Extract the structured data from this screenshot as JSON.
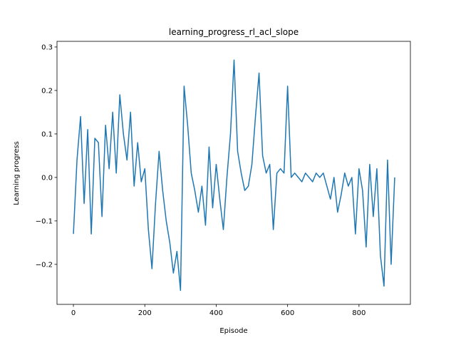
{
  "chart_data": {
    "type": "line",
    "title": "learning_progress_rl_acl_slope",
    "x_label": "Episode",
    "y_label": "Learning progress",
    "x": [
      0,
      10,
      20,
      30,
      40,
      50,
      60,
      70,
      80,
      90,
      100,
      110,
      120,
      130,
      140,
      150,
      160,
      170,
      180,
      190,
      200,
      210,
      220,
      230,
      240,
      250,
      260,
      270,
      280,
      290,
      300,
      310,
      320,
      330,
      340,
      350,
      360,
      370,
      380,
      390,
      400,
      410,
      420,
      430,
      440,
      450,
      460,
      470,
      480,
      490,
      500,
      510,
      520,
      530,
      540,
      550,
      560,
      570,
      580,
      590,
      600,
      610,
      620,
      630,
      640,
      650,
      660,
      670,
      680,
      690,
      700,
      710,
      720,
      730,
      740,
      750,
      760,
      770,
      780,
      790,
      800,
      810,
      820,
      830,
      840,
      850,
      860,
      870,
      880,
      890,
      900
    ],
    "series": [
      {
        "name": "learning_progress",
        "color": "#1f77b4",
        "values": [
          -0.13,
          0.04,
          0.14,
          -0.06,
          0.11,
          -0.13,
          0.09,
          0.08,
          -0.09,
          0.12,
          0.02,
          0.15,
          0.01,
          0.19,
          0.1,
          0.04,
          0.15,
          -0.02,
          0.08,
          -0.01,
          0.02,
          -0.12,
          -0.21,
          -0.06,
          0.06,
          -0.03,
          -0.1,
          -0.15,
          -0.22,
          -0.17,
          -0.26,
          0.21,
          0.12,
          0.01,
          -0.03,
          -0.08,
          -0.02,
          -0.11,
          0.07,
          -0.07,
          0.03,
          -0.05,
          -0.12,
          0.0,
          0.1,
          0.27,
          0.06,
          0.01,
          -0.03,
          -0.02,
          0.03,
          0.14,
          0.24,
          0.05,
          0.01,
          0.03,
          -0.12,
          0.01,
          0.02,
          0.01,
          0.21,
          0.0,
          0.01,
          0.0,
          -0.01,
          0.01,
          0.0,
          -0.01,
          0.01,
          0.0,
          0.01,
          -0.02,
          -0.05,
          0.0,
          -0.08,
          -0.04,
          0.01,
          -0.02,
          0.0,
          -0.13,
          0.02,
          -0.03,
          -0.16,
          0.03,
          -0.09,
          0.02,
          -0.18,
          -0.25,
          0.04,
          -0.2,
          0.0
        ]
      }
    ],
    "xlim": [
      -46,
      944
    ],
    "ylim": [
      -0.292,
      0.313
    ],
    "xticks": [
      0,
      200,
      400,
      600,
      800
    ],
    "yticks": [
      {
        "value": -0.2,
        "label": "−0.2"
      },
      {
        "value": -0.1,
        "label": "−0.1"
      },
      {
        "value": 0,
        "label": "0.0"
      },
      {
        "value": 0.1,
        "label": "0.1"
      },
      {
        "value": 0.2,
        "label": "0.2"
      },
      {
        "value": 0.3,
        "label": "0.3"
      }
    ]
  }
}
